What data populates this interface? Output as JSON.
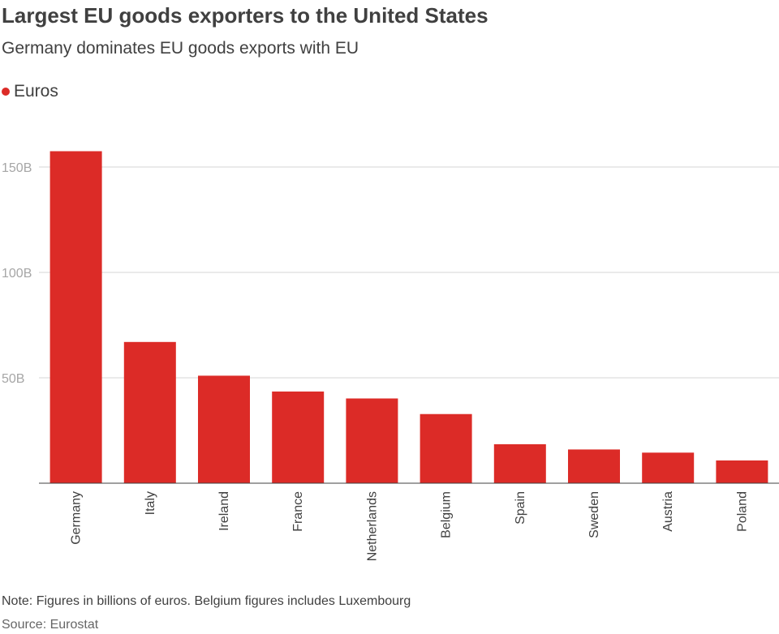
{
  "header": {
    "title": "Largest EU goods exporters to the United States",
    "subtitle": "Germany dominates EU goods exports with EU"
  },
  "legend": {
    "label": "Euros",
    "color": "#dc2b27"
  },
  "footer": {
    "note": "Note: Figures in billions of euros. Belgium figures includes Luxembourg",
    "source": "Source: Eurostat"
  },
  "chart_data": {
    "type": "bar",
    "title": "Largest EU goods exporters to the United States",
    "subtitle": "Germany dominates EU goods exports with EU",
    "xlabel": "",
    "ylabel": "",
    "categories": [
      "Germany",
      "Italy",
      "Ireland",
      "France",
      "Netherlands",
      "Belgium",
      "Spain",
      "Sweden",
      "Austria",
      "Poland"
    ],
    "series": [
      {
        "name": "Euros",
        "color": "#dc2b27",
        "values": [
          157.5,
          67,
          51,
          43.5,
          40.2,
          32.8,
          18.5,
          16,
          14.5,
          10.8
        ]
      }
    ],
    "ylim": [
      0,
      160
    ],
    "yticks": [
      50,
      100,
      150
    ],
    "ytick_labels": [
      "50B",
      "100B",
      "150B"
    ],
    "grid": true,
    "legend_position": "top-left"
  }
}
